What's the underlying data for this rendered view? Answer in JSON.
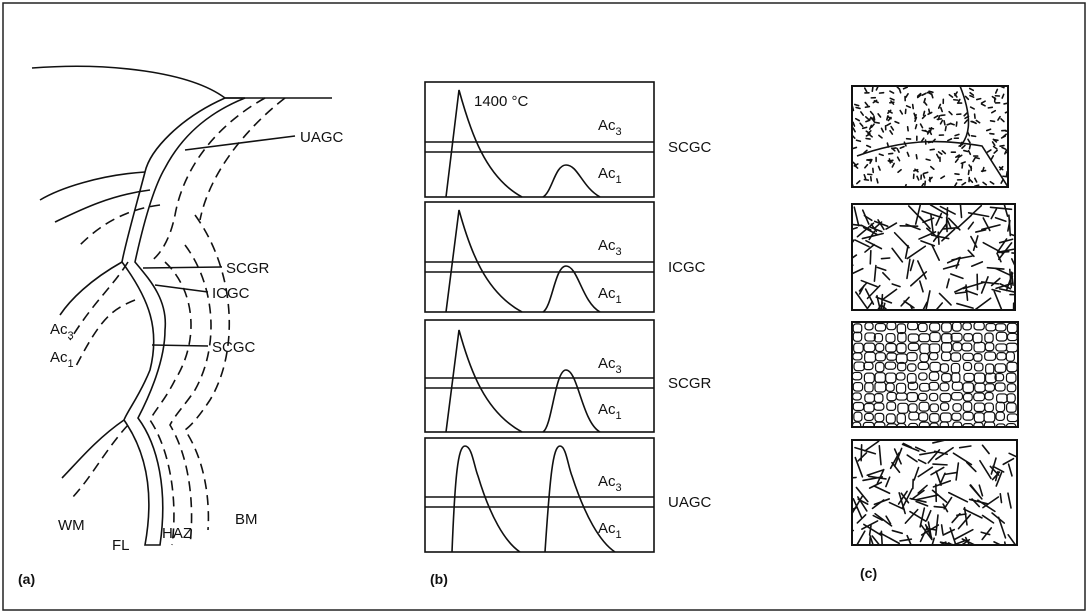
{
  "panel_a": {
    "label": "(a)",
    "zone_labels": [
      "UAGC",
      "SCGR",
      "ICGC",
      "SCGC"
    ],
    "ac3": {
      "base": "Ac",
      "sub": "3"
    },
    "ac1": {
      "base": "Ac",
      "sub": "1"
    },
    "region_labels": [
      "WM",
      "FL",
      "HAZ",
      "BM"
    ]
  },
  "panel_b": {
    "label": "(b)",
    "peak_temperature": "1400 °C",
    "cycles": [
      {
        "zone": "SCGC",
        "upper": {
          "base": "Ac",
          "sub": "3"
        },
        "lower": {
          "base": "Ac",
          "sub": "1"
        }
      },
      {
        "zone": "ICGC",
        "upper": {
          "base": "Ac",
          "sub": "3"
        },
        "lower": {
          "base": "Ac",
          "sub": "1"
        }
      },
      {
        "zone": "SCGR",
        "upper": {
          "base": "Ac",
          "sub": "3"
        },
        "lower": {
          "base": "Ac",
          "sub": "1"
        }
      },
      {
        "zone": "UAGC",
        "upper": {
          "base": "Ac",
          "sub": "3"
        },
        "lower": {
          "base": "Ac",
          "sub": "1"
        }
      }
    ]
  },
  "panel_c": {
    "label": "(c)"
  }
}
